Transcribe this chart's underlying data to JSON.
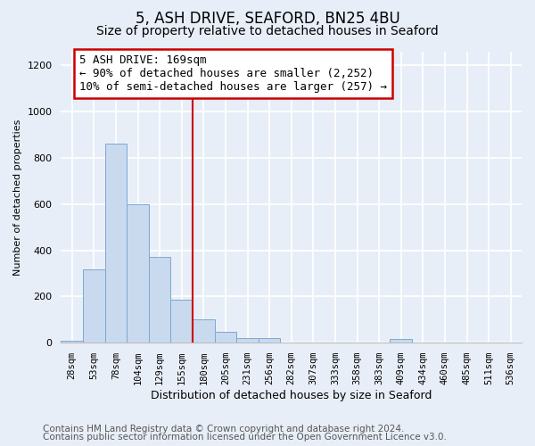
{
  "title": "5, ASH DRIVE, SEAFORD, BN25 4BU",
  "subtitle": "Size of property relative to detached houses in Seaford",
  "xlabel": "Distribution of detached houses by size in Seaford",
  "ylabel": "Number of detached properties",
  "bar_labels": [
    "28sqm",
    "53sqm",
    "78sqm",
    "104sqm",
    "129sqm",
    "155sqm",
    "180sqm",
    "205sqm",
    "231sqm",
    "256sqm",
    "282sqm",
    "307sqm",
    "333sqm",
    "358sqm",
    "383sqm",
    "409sqm",
    "434sqm",
    "460sqm",
    "485sqm",
    "511sqm",
    "536sqm"
  ],
  "bar_values": [
    10,
    318,
    860,
    600,
    370,
    185,
    100,
    47,
    20,
    20,
    0,
    0,
    0,
    0,
    0,
    15,
    0,
    0,
    0,
    0,
    0
  ],
  "bar_color": "#c9d9ee",
  "bar_edge_color": "#7aaad0",
  "annotation_box_text_line1": "5 ASH DRIVE: 169sqm",
  "annotation_box_text_line2": "← 90% of detached houses are smaller (2,252)",
  "annotation_box_text_line3": "10% of semi-detached houses are larger (257) →",
  "annotation_box_color": "white",
  "annotation_box_edge_color": "#cc0000",
  "vline_color": "#cc0000",
  "vline_x_index": 5.52,
  "ylim": [
    0,
    1260
  ],
  "yticks": [
    0,
    200,
    400,
    600,
    800,
    1000,
    1200
  ],
  "footer_line1": "Contains HM Land Registry data © Crown copyright and database right 2024.",
  "footer_line2": "Contains public sector information licensed under the Open Government Licence v3.0.",
  "bg_color": "#e8eef8",
  "plot_bg_color": "#e8eef8",
  "grid_color": "white",
  "title_fontsize": 12,
  "subtitle_fontsize": 10,
  "annotation_fontsize": 9,
  "footer_fontsize": 7.5,
  "ylabel_fontsize": 8,
  "xlabel_fontsize": 9
}
